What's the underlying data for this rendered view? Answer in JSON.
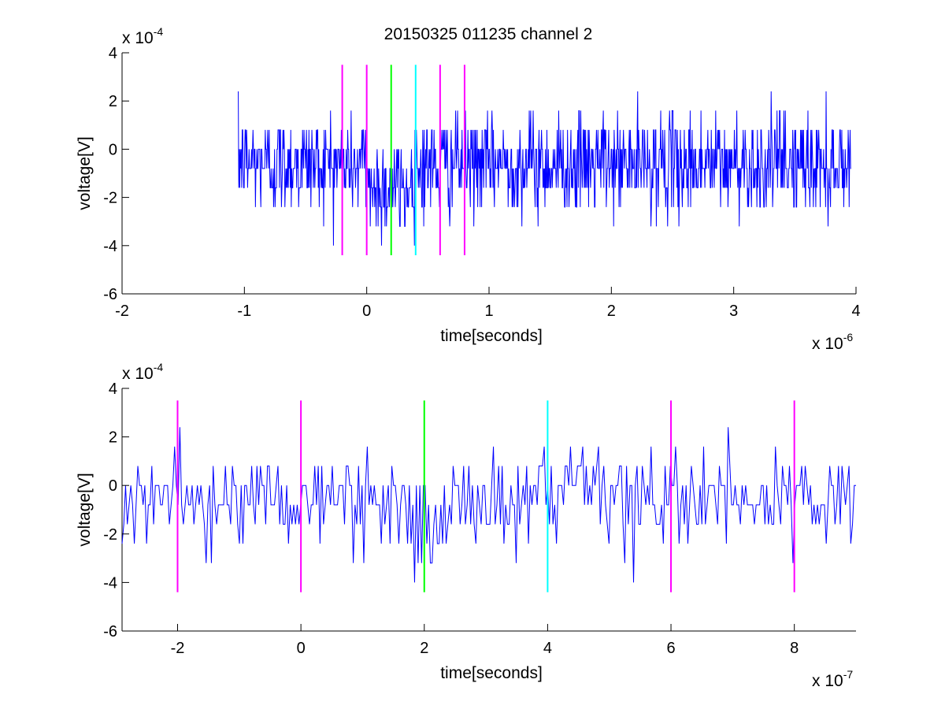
{
  "figure": {
    "title": "20150325 011235 channel 2"
  },
  "colors": {
    "trace": "#0000ff",
    "marker_outer": "#ff00ff",
    "marker_center": "#00ff00",
    "marker_alt": "#00ffff"
  },
  "chart_data": [
    {
      "type": "line",
      "xlabel": "time[seconds]",
      "ylabel": "voltage[V]",
      "xlim": [
        -2,
        4
      ],
      "ylim": [
        -6,
        4
      ],
      "x_multiplier": {
        "base": "x 10",
        "exp": "-6"
      },
      "y_multiplier": {
        "base": "x 10",
        "exp": "-4"
      },
      "xticks": [
        "-2",
        "-1",
        "0",
        "1",
        "2",
        "3",
        "4"
      ],
      "yticks": [
        "-6",
        "-4",
        "-2",
        "0",
        "2",
        "4"
      ],
      "trace_x_range": [
        -1.05,
        3.96
      ],
      "trace_levels": [
        -4.0,
        -3.2,
        -2.4,
        -1.6,
        -0.8,
        0,
        0.8,
        1.6,
        2.4,
        3.2
      ],
      "vertical_markers": [
        {
          "x": -0.2,
          "y_range": [
            -4.4,
            3.5
          ],
          "color": "#ff00ff"
        },
        {
          "x": 0.0,
          "y_range": [
            -4.4,
            3.5
          ],
          "color": "#ff00ff"
        },
        {
          "x": 0.2,
          "y_range": [
            -4.4,
            3.5
          ],
          "color": "#00ff00"
        },
        {
          "x": 0.4,
          "y_range": [
            -4.4,
            3.5
          ],
          "color": "#00ffff"
        },
        {
          "x": 0.6,
          "y_range": [
            -4.4,
            3.5
          ],
          "color": "#ff00ff"
        },
        {
          "x": 0.8,
          "y_range": [
            -4.4,
            3.5
          ],
          "color": "#ff00ff"
        }
      ]
    },
    {
      "type": "line",
      "xlabel": "time[seconds]",
      "ylabel": "voltage[V]",
      "xlim": [
        -2.9,
        9
      ],
      "ylim": [
        -6,
        4
      ],
      "x_multiplier": {
        "base": "x 10",
        "exp": "-7"
      },
      "y_multiplier": {
        "base": "x 10",
        "exp": "-4"
      },
      "xticks": [
        "-2",
        "0",
        "2",
        "4",
        "6",
        "8"
      ],
      "yticks": [
        "-6",
        "-4",
        "-2",
        "0",
        "2",
        "4"
      ],
      "trace_x_range": [
        -2.9,
        9
      ],
      "trace_levels": [
        -4.0,
        -3.2,
        -2.4,
        -1.6,
        -0.8,
        0,
        0.8,
        1.6,
        2.4
      ],
      "vertical_markers": [
        {
          "x": -2,
          "y_range": [
            -4.4,
            3.5
          ],
          "color": "#ff00ff"
        },
        {
          "x": 0,
          "y_range": [
            -4.4,
            3.5
          ],
          "color": "#ff00ff"
        },
        {
          "x": 2,
          "y_range": [
            -4.4,
            3.5
          ],
          "color": "#00ff00"
        },
        {
          "x": 4,
          "y_range": [
            -4.4,
            3.5
          ],
          "color": "#00ffff"
        },
        {
          "x": 6,
          "y_range": [
            -4.4,
            3.5
          ],
          "color": "#ff00ff"
        },
        {
          "x": 8,
          "y_range": [
            -4.4,
            3.5
          ],
          "color": "#ff00ff"
        }
      ]
    }
  ]
}
